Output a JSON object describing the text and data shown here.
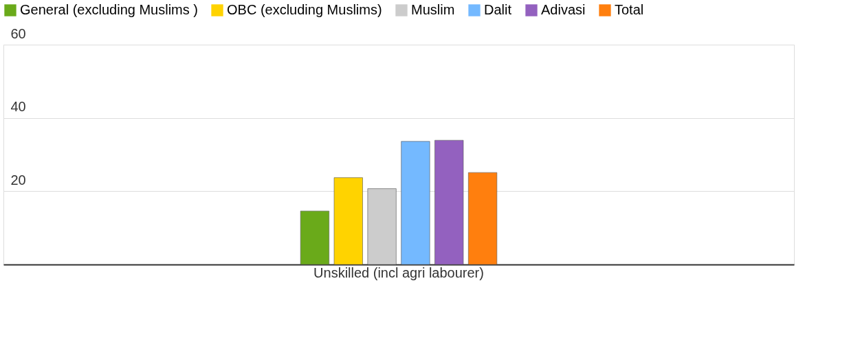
{
  "chart_data": {
    "type": "bar",
    "categories": [
      "Unskilled (incl agri labourer)"
    ],
    "series": [
      {
        "name": "General (excluding Muslims )",
        "color": "#6aaa1a",
        "values": [
          14.6
        ]
      },
      {
        "name": "OBC (excluding Muslims)",
        "color": "#ffd300",
        "values": [
          23.7
        ]
      },
      {
        "name": "Muslim",
        "color": "#cccccc",
        "values": [
          20.7
        ]
      },
      {
        "name": "Dalit",
        "color": "#74b9ff",
        "values": [
          33.6
        ]
      },
      {
        "name": "Adivasi",
        "color": "#9361bf",
        "values": [
          33.9
        ]
      },
      {
        "name": "Total",
        "color": "#ff7f0e",
        "values": [
          25.1
        ]
      }
    ],
    "ylim": [
      0,
      60
    ],
    "yticks": [
      {
        "value": 0,
        "label": null
      },
      20,
      40,
      60
    ],
    "grid": "y",
    "legend": "top"
  }
}
